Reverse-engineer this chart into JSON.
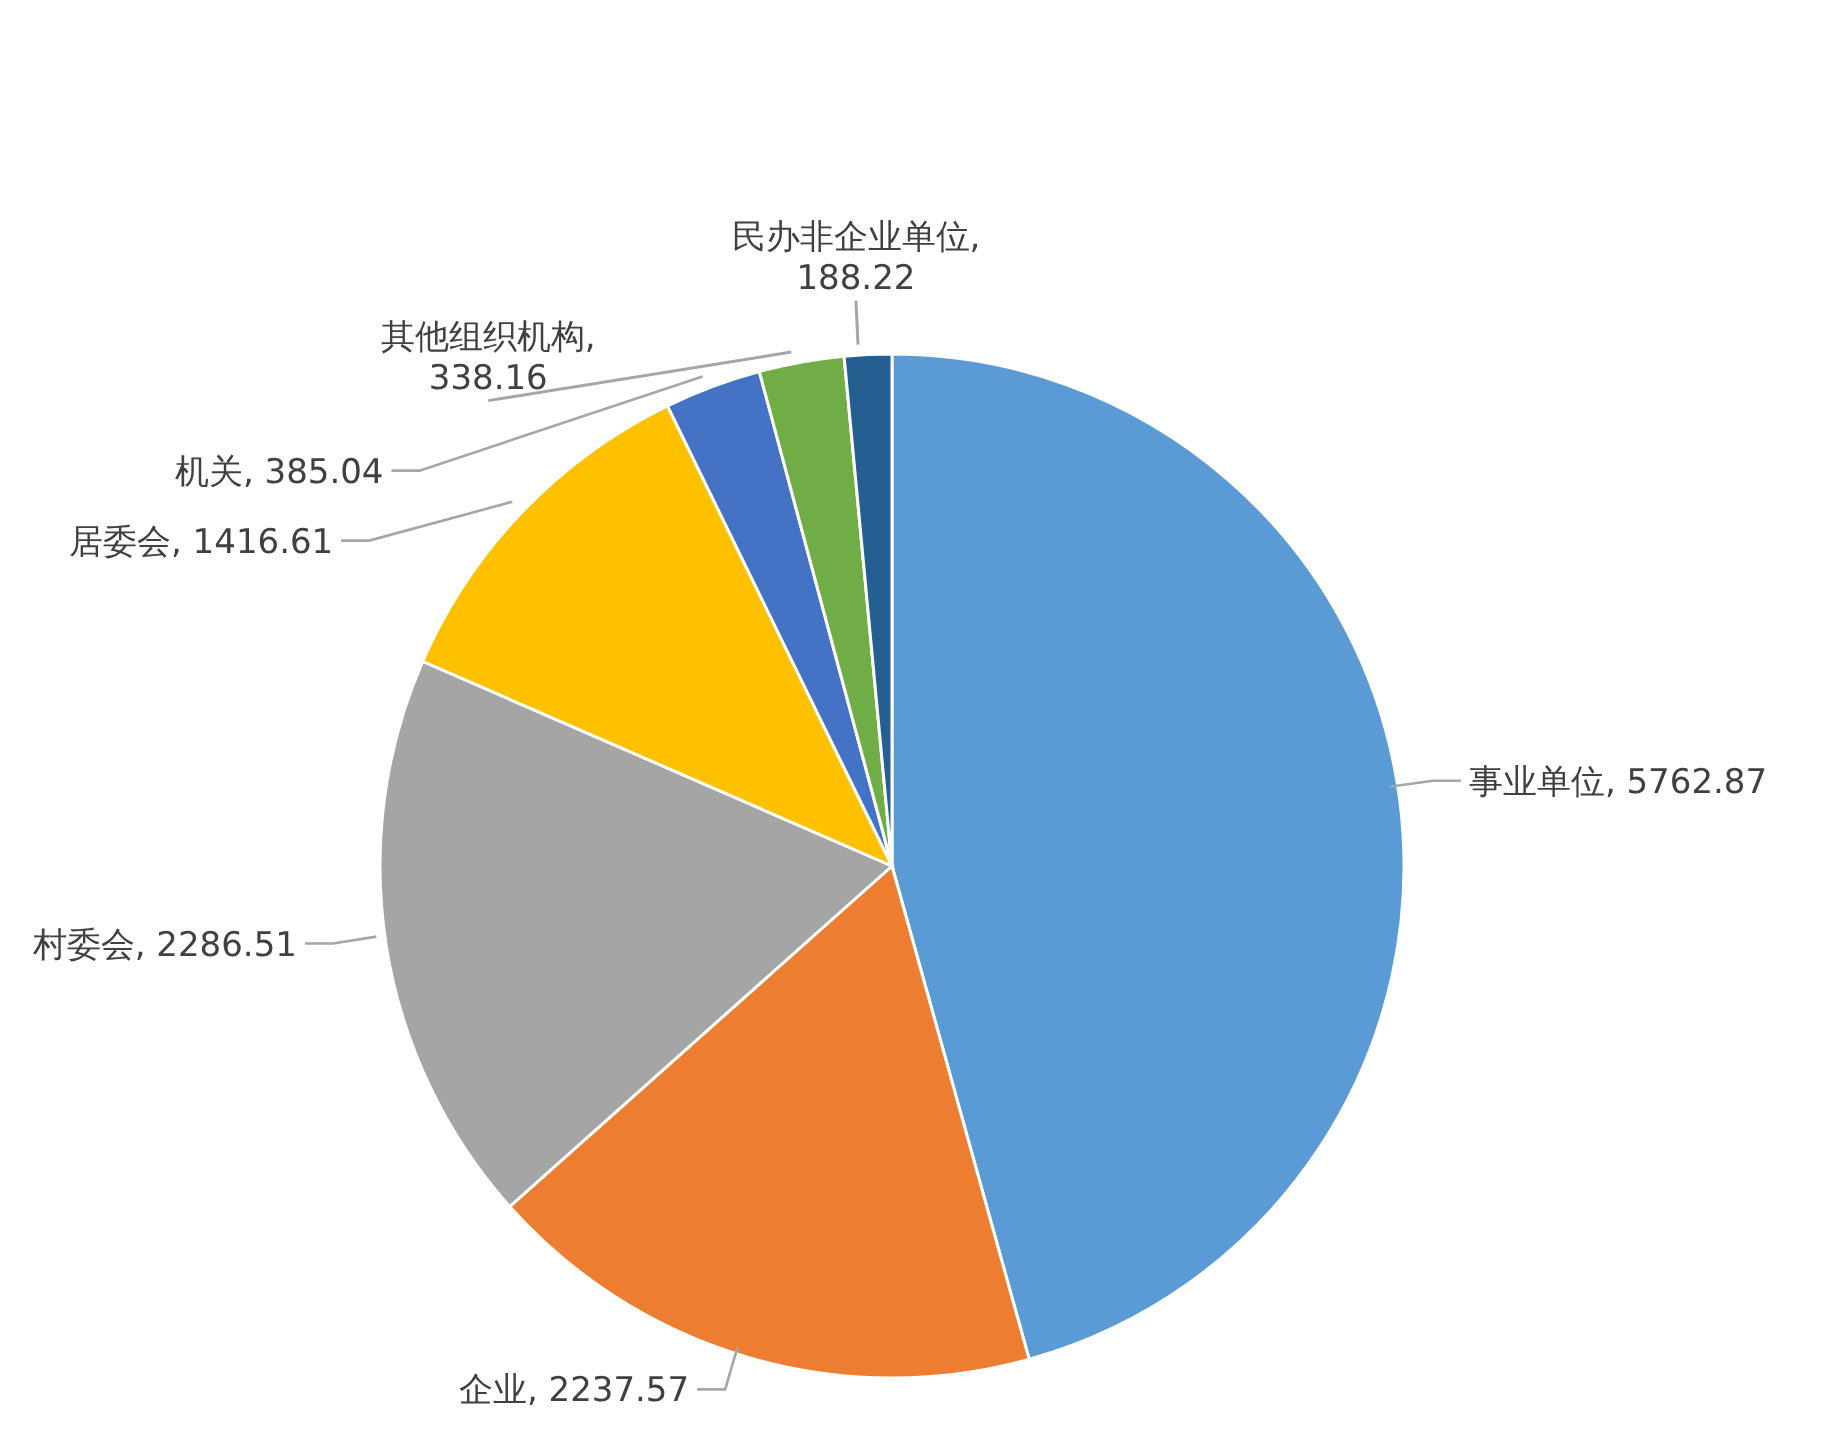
{
  "chart_data": {
    "type": "pie",
    "categories": [
      "事业单位",
      "企业",
      "村委会",
      "居委会",
      "机关",
      "其他组织机构",
      "民办非企业单位"
    ],
    "values": [
      5762.87,
      2237.57,
      2286.51,
      1416.61,
      385.04,
      338.16,
      188.22
    ],
    "colors": [
      "#5b9bd5",
      "#ed7d31",
      "#a5a5a5",
      "#ffc000",
      "#4472c4",
      "#70ad47",
      "#255e91"
    ],
    "value_labels": [
      ", 5762.87",
      ", 2237.57",
      ", 2286.51",
      ", 1416.61",
      ", 385.04",
      ",\n338.16",
      ",\n188.22"
    ],
    "legend": false
  }
}
